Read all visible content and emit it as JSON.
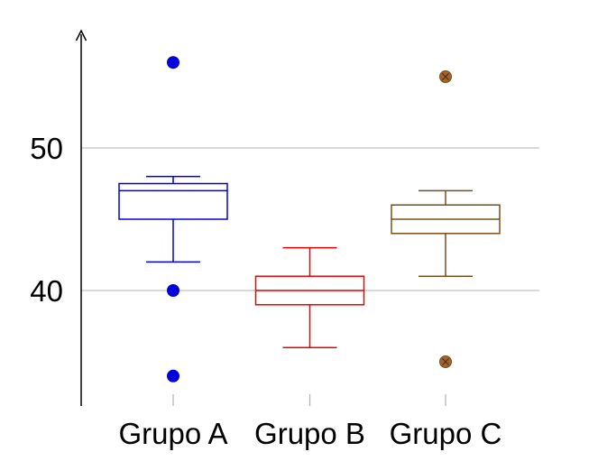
{
  "chart_data": {
    "type": "box",
    "categories": [
      "Grupo A",
      "Grupo B",
      "Grupo C"
    ],
    "series": [
      {
        "category": "Grupo A",
        "color": "#0000dd",
        "whisker_low": 42,
        "q1": 45,
        "median": 47,
        "q3": 47.5,
        "whisker_high": 48,
        "outliers": [
          56,
          40,
          34
        ],
        "outlier_marker": "filled-circle"
      },
      {
        "category": "Grupo B",
        "color": "#ee0000",
        "whisker_low": 36,
        "q1": 39,
        "median": 40,
        "q3": 41,
        "whisker_high": 43,
        "outliers": [],
        "outlier_marker": "none"
      },
      {
        "category": "Grupo C",
        "color": "#7a4e1c",
        "whisker_low": 41,
        "q1": 44,
        "median": 45,
        "q3": 46,
        "whisker_high": 47,
        "outliers": [
          55,
          35
        ],
        "outlier_marker": "crossed-circle",
        "outlier_fill": "#a0642c"
      }
    ],
    "y_ticks": [
      "40",
      "50"
    ],
    "ylim": [
      32,
      58
    ],
    "grid": "horizontal at y ticks",
    "axis_color": "#000000",
    "grid_color": "#c0c0c0"
  }
}
